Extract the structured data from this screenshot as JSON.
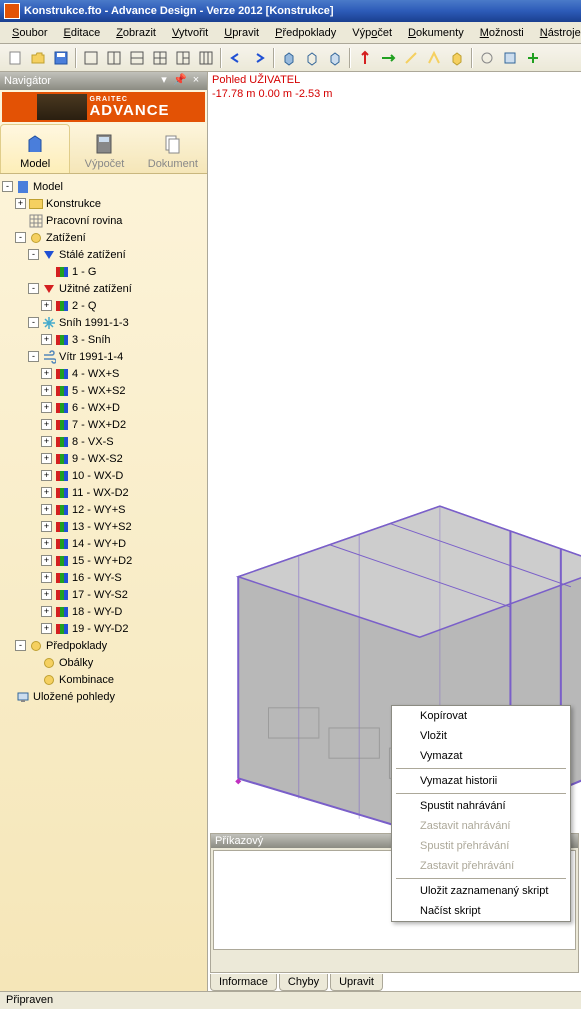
{
  "title": "Konstrukce.fto - Advance Design - Verze 2012 [Konstrukce]",
  "menu": [
    "Soubor",
    "Editace",
    "Zobrazit",
    "Vytvořit",
    "Upravit",
    "Předpoklady",
    "Výpočet",
    "Dokumenty",
    "Možnosti",
    "Nástroje"
  ],
  "menuAccel": [
    "S",
    "E",
    "Z",
    "V",
    "U",
    "P",
    "o",
    "D",
    "M",
    "N"
  ],
  "navigator": {
    "title": "Navigátor"
  },
  "logo": {
    "brand": "GRAITEC",
    "product": "ADVANCE"
  },
  "navTabs": [
    {
      "label": "Model",
      "active": true
    },
    {
      "label": "Výpočet",
      "active": false
    },
    {
      "label": "Dokument",
      "active": false
    }
  ],
  "tree": [
    {
      "d": 0,
      "t": "-",
      "ic": "blue",
      "label": "Model"
    },
    {
      "d": 1,
      "t": "+",
      "ic": "folder",
      "label": "Konstrukce"
    },
    {
      "d": 1,
      "t": "",
      "ic": "grid",
      "label": "Pracovní rovina"
    },
    {
      "d": 1,
      "t": "-",
      "ic": "yellow",
      "label": "Zatížení"
    },
    {
      "d": 2,
      "t": "-",
      "ic": "bluearrow",
      "label": "Stálé zatížení"
    },
    {
      "d": 3,
      "t": "",
      "ic": "load",
      "label": "1 - G"
    },
    {
      "d": 2,
      "t": "-",
      "ic": "redarrow",
      "label": "Užitné zatížení"
    },
    {
      "d": 3,
      "t": "+",
      "ic": "load",
      "label": "2 - Q"
    },
    {
      "d": 2,
      "t": "-",
      "ic": "snow",
      "label": "Sníh 1991-1-3"
    },
    {
      "d": 3,
      "t": "+",
      "ic": "load",
      "label": "3 - Sníh"
    },
    {
      "d": 2,
      "t": "-",
      "ic": "wind",
      "label": "Vítr 1991-1-4"
    },
    {
      "d": 3,
      "t": "+",
      "ic": "load",
      "label": "4 - WX+S"
    },
    {
      "d": 3,
      "t": "+",
      "ic": "load",
      "label": "5 - WX+S2"
    },
    {
      "d": 3,
      "t": "+",
      "ic": "load",
      "label": "6 - WX+D"
    },
    {
      "d": 3,
      "t": "+",
      "ic": "load",
      "label": "7 - WX+D2"
    },
    {
      "d": 3,
      "t": "+",
      "ic": "load",
      "label": "8 - VX-S"
    },
    {
      "d": 3,
      "t": "+",
      "ic": "load",
      "label": "9 - WX-S2"
    },
    {
      "d": 3,
      "t": "+",
      "ic": "load",
      "label": "10 - WX-D"
    },
    {
      "d": 3,
      "t": "+",
      "ic": "load",
      "label": "11 - WX-D2"
    },
    {
      "d": 3,
      "t": "+",
      "ic": "load",
      "label": "12 - WY+S"
    },
    {
      "d": 3,
      "t": "+",
      "ic": "load",
      "label": "13 - WY+S2"
    },
    {
      "d": 3,
      "t": "+",
      "ic": "load",
      "label": "14 - WY+D"
    },
    {
      "d": 3,
      "t": "+",
      "ic": "load",
      "label": "15 - WY+D2"
    },
    {
      "d": 3,
      "t": "+",
      "ic": "load",
      "label": "16 - WY-S"
    },
    {
      "d": 3,
      "t": "+",
      "ic": "load",
      "label": "17 - WY-S2"
    },
    {
      "d": 3,
      "t": "+",
      "ic": "load",
      "label": "18 - WY-D"
    },
    {
      "d": 3,
      "t": "+",
      "ic": "load",
      "label": "19 - WY-D2"
    },
    {
      "d": 1,
      "t": "-",
      "ic": "yellow",
      "label": "Předpoklady"
    },
    {
      "d": 2,
      "t": "",
      "ic": "yellow",
      "label": "Obálky"
    },
    {
      "d": 2,
      "t": "",
      "ic": "yellow",
      "label": "Kombinace"
    },
    {
      "d": 0,
      "t": "",
      "ic": "pc",
      "label": "Uložené pohledy"
    }
  ],
  "viewport": {
    "label1": "Pohled UŽIVATEL",
    "label2": "-17.78 m  0.00 m  -2.53 m"
  },
  "contextMenu": [
    {
      "label": "Kopírovat",
      "enabled": true
    },
    {
      "label": "Vložit",
      "enabled": true
    },
    {
      "label": "Vymazat",
      "enabled": true
    },
    {
      "sep": true
    },
    {
      "label": "Vymazat historii",
      "enabled": true
    },
    {
      "sep": true
    },
    {
      "label": "Spustit nahrávání",
      "enabled": true
    },
    {
      "label": "Zastavit nahrávání",
      "enabled": false
    },
    {
      "label": "Spustit přehrávání",
      "enabled": false
    },
    {
      "label": "Zastavit přehrávání",
      "enabled": false
    },
    {
      "sep": true
    },
    {
      "label": "Uložit zaznamenaný skript",
      "enabled": true
    },
    {
      "label": "Načíst skript",
      "enabled": true
    }
  ],
  "cmdPanel": {
    "title": "Příkazový"
  },
  "bottomTabs": [
    "Informace",
    "Chyby",
    "Upravit"
  ],
  "status": "Připraven",
  "colors": {
    "titleBar": "#2d5bb8",
    "menu": "#ece9d8",
    "navBg": "#fdf5dc",
    "orange": "#e35205",
    "treeLine": "#8b8b82",
    "viewportLabel": "#d40000",
    "structBeam": "#7a5fc9",
    "structWall": "#9a9a9a"
  }
}
